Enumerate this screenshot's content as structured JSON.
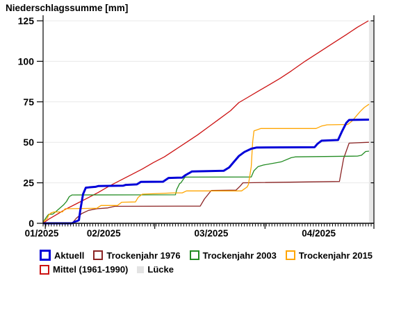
{
  "title": "Niederschlagssumme [mm]",
  "chart_data": {
    "type": "line",
    "title": "Niederschlagssumme [mm]",
    "ylabel": "Niederschlagssumme [mm]",
    "xlabel": "",
    "grid": true,
    "x_axis": {
      "unit": "days since 01.01.2025",
      "range_days": [
        0,
        120
      ],
      "month_labels": [
        {
          "label": "01/2025",
          "day": -0.5
        },
        {
          "label": "02/2025",
          "day": 22
        },
        {
          "label": "03/2025",
          "day": 61
        },
        {
          "label": "04/2025",
          "day": 100
        }
      ],
      "major_tick_days": [
        0.8,
        40.5,
        80.5,
        120
      ],
      "minor_tick_step_days": 1
    },
    "y_axis": {
      "ticks": [
        0,
        25,
        50,
        75,
        100,
        125
      ],
      "range": [
        0,
        125
      ]
    },
    "gap": {
      "label": "Lücke",
      "start_day": 118.2,
      "end_day": 120,
      "color": "#e7e7e7"
    },
    "series": [
      {
        "name": "Mittel (1961-1990)",
        "color": "#cc1111",
        "width": 1.3,
        "points": [
          [
            0,
            0
          ],
          [
            2,
            2.5
          ],
          [
            5,
            5.5
          ],
          [
            8,
            8.5
          ],
          [
            12,
            12
          ],
          [
            16,
            15.5
          ],
          [
            20,
            19
          ],
          [
            24,
            23
          ],
          [
            28,
            26.5
          ],
          [
            32,
            30
          ],
          [
            36,
            33.5
          ],
          [
            40,
            37.5
          ],
          [
            44,
            41
          ],
          [
            48,
            45.5
          ],
          [
            52,
            50
          ],
          [
            56,
            54.5
          ],
          [
            60,
            59.5
          ],
          [
            64,
            64.5
          ],
          [
            68,
            69.5
          ],
          [
            71,
            74.5
          ],
          [
            74,
            77.5
          ],
          [
            78,
            81.5
          ],
          [
            82,
            85.5
          ],
          [
            86,
            89.5
          ],
          [
            90,
            94
          ],
          [
            95,
            100
          ],
          [
            100,
            105.5
          ],
          [
            105,
            111
          ],
          [
            110,
            116.5
          ],
          [
            114,
            121
          ],
          [
            118,
            125
          ]
        ]
      },
      {
        "name": "Trockenjahr 1976",
        "color": "#8b2323",
        "width": 1.3,
        "points": [
          [
            0,
            0
          ],
          [
            10.5,
            0
          ],
          [
            12,
            3
          ],
          [
            14,
            6
          ],
          [
            16.5,
            8
          ],
          [
            19.5,
            9
          ],
          [
            23.5,
            9.5
          ],
          [
            26,
            10.5
          ],
          [
            57,
            10.6
          ],
          [
            58.5,
            15
          ],
          [
            61,
            20.3
          ],
          [
            70,
            20.5
          ],
          [
            71.5,
            23
          ],
          [
            72.5,
            25
          ],
          [
            107.5,
            25.8
          ],
          [
            109,
            40
          ],
          [
            111,
            49.5
          ],
          [
            118.2,
            50
          ]
        ]
      },
      {
        "name": "Trockenjahr 2003",
        "color": "#228b22",
        "width": 1.3,
        "points": [
          [
            0,
            0
          ],
          [
            0.5,
            2
          ],
          [
            1.5,
            4.5
          ],
          [
            2,
            5.5
          ],
          [
            3.5,
            5.7
          ],
          [
            4.5,
            7
          ],
          [
            5.5,
            8.5
          ],
          [
            6.5,
            10
          ],
          [
            7.5,
            11.5
          ],
          [
            8.5,
            13.5
          ],
          [
            9,
            15
          ],
          [
            9.5,
            16.5
          ],
          [
            10.5,
            17.5
          ],
          [
            48,
            17.6
          ],
          [
            48.5,
            21
          ],
          [
            49.5,
            24.5
          ],
          [
            50,
            25
          ],
          [
            51,
            27.5
          ],
          [
            51.5,
            28.5
          ],
          [
            75.5,
            28.6
          ],
          [
            76.5,
            32.5
          ],
          [
            78,
            35
          ],
          [
            80,
            36
          ],
          [
            85,
            37.5
          ],
          [
            86.5,
            38
          ],
          [
            90,
            40.5
          ],
          [
            91.5,
            41
          ],
          [
            114,
            41.5
          ],
          [
            115.5,
            42
          ],
          [
            117,
            44.3
          ],
          [
            118.2,
            44.5
          ]
        ]
      },
      {
        "name": "Trockenjahr 2015",
        "color": "#ffa500",
        "width": 1.3,
        "points": [
          [
            0,
            0
          ],
          [
            0.5,
            1.5
          ],
          [
            1.5,
            3
          ],
          [
            2,
            5
          ],
          [
            3,
            6.5
          ],
          [
            4,
            7
          ],
          [
            7,
            7
          ],
          [
            8,
            9
          ],
          [
            19.5,
            9.3
          ],
          [
            21,
            11
          ],
          [
            27,
            11
          ],
          [
            28.5,
            13
          ],
          [
            33.5,
            13.2
          ],
          [
            34.5,
            16
          ],
          [
            36,
            18
          ],
          [
            47.5,
            18.8
          ],
          [
            50.5,
            18.8
          ],
          [
            52,
            20
          ],
          [
            72,
            20
          ],
          [
            74,
            22.4
          ],
          [
            74.5,
            24
          ],
          [
            75.5,
            35
          ],
          [
            76,
            50
          ],
          [
            76.5,
            57
          ],
          [
            79,
            58.5
          ],
          [
            99,
            58.5
          ],
          [
            101,
            60
          ],
          [
            103,
            60.8
          ],
          [
            110.5,
            61
          ],
          [
            112,
            63
          ],
          [
            113.5,
            66
          ],
          [
            115,
            69
          ],
          [
            116.5,
            71.5
          ],
          [
            118.2,
            73.5
          ]
        ]
      },
      {
        "name": "Aktuell",
        "color": "#0000d8",
        "width": 3,
        "points": [
          [
            0,
            0
          ],
          [
            10.5,
            0
          ],
          [
            11.5,
            1
          ],
          [
            12.5,
            1.5
          ],
          [
            13,
            2
          ],
          [
            13.5,
            8
          ],
          [
            14.5,
            18
          ],
          [
            15.5,
            22
          ],
          [
            19,
            22.5
          ],
          [
            20,
            23
          ],
          [
            29,
            23.2
          ],
          [
            30,
            23.7
          ],
          [
            34,
            24
          ],
          [
            35.5,
            25.6
          ],
          [
            43.5,
            25.7
          ],
          [
            45.5,
            28
          ],
          [
            50.5,
            28.2
          ],
          [
            51.5,
            29.6
          ],
          [
            53,
            31
          ],
          [
            54,
            32
          ],
          [
            65.5,
            32.4
          ],
          [
            67.5,
            34.5
          ],
          [
            69,
            37.5
          ],
          [
            71,
            41.5
          ],
          [
            73,
            44
          ],
          [
            75.5,
            46
          ],
          [
            77.5,
            46.8
          ],
          [
            98.5,
            47
          ],
          [
            99.5,
            49
          ],
          [
            101,
            51
          ],
          [
            107,
            51.4
          ],
          [
            108.5,
            57
          ],
          [
            110,
            62
          ],
          [
            111,
            63.8
          ],
          [
            118.2,
            64
          ]
        ]
      }
    ]
  },
  "legend": {
    "rows": [
      [
        {
          "label": "Aktuell",
          "color": "#0000d8",
          "swatch": "outline-thick"
        },
        {
          "label": "Trockenjahr 1976",
          "color": "#8b2323",
          "swatch": "outline"
        },
        {
          "label": "Trockenjahr 2003",
          "color": "#228b22",
          "swatch": "outline"
        },
        {
          "label": "Trockenjahr 2015",
          "color": "#ffa500",
          "swatch": "outline"
        }
      ],
      [
        {
          "label": "Mittel (1961-1990)",
          "color": "#cc1111",
          "swatch": "outline"
        },
        {
          "label": "Lücke",
          "color": "#e3e3e3",
          "swatch": "filled"
        }
      ]
    ]
  },
  "style": {
    "grid_color": "#e8e8e8",
    "axis_color": "#000000",
    "background": "#ffffff"
  }
}
